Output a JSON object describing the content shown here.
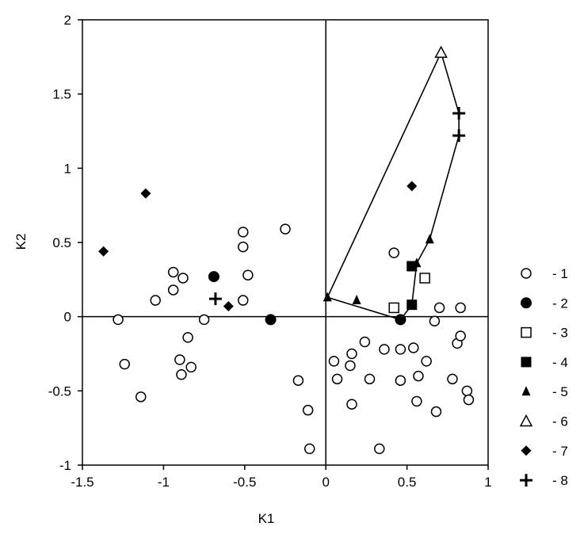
{
  "chart_data": {
    "type": "scatter",
    "xlabel": "K1",
    "ylabel": "K2",
    "xlim": [
      -1.5,
      1
    ],
    "ylim": [
      -1,
      2
    ],
    "xticks": [
      -1.5,
      -1,
      -0.5,
      0,
      0.5,
      1
    ],
    "yticks": [
      -1,
      -0.5,
      0,
      0.5,
      1,
      1.5,
      2
    ],
    "xtick_labels": [
      "-1.5",
      "-1",
      "-0.5",
      "0",
      "0.5",
      "1"
    ],
    "ytick_labels": [
      "-1",
      "-0.5",
      "0",
      "0.5",
      "1",
      "1.5",
      "2"
    ],
    "grid": false,
    "legend_position": "right",
    "reference_lines": {
      "x": 0,
      "y": 0
    },
    "series": [
      {
        "name": "- 1",
        "marker": "circle-open",
        "points": [
          [
            -1.28,
            -0.02
          ],
          [
            -1.24,
            -0.32
          ],
          [
            -1.14,
            -0.54
          ],
          [
            -1.05,
            0.11
          ],
          [
            -0.94,
            0.3
          ],
          [
            -0.94,
            0.18
          ],
          [
            -0.88,
            0.26
          ],
          [
            -0.9,
            -0.29
          ],
          [
            -0.89,
            -0.39
          ],
          [
            -0.85,
            -0.14
          ],
          [
            -0.83,
            -0.34
          ],
          [
            -0.75,
            -0.02
          ],
          [
            -0.51,
            0.57
          ],
          [
            -0.51,
            0.47
          ],
          [
            -0.51,
            0.11
          ],
          [
            -0.48,
            0.28
          ],
          [
            -0.25,
            0.59
          ],
          [
            -0.17,
            -0.43
          ],
          [
            -0.11,
            -0.63
          ],
          [
            -0.1,
            -0.89
          ],
          [
            0.05,
            -0.3
          ],
          [
            0.07,
            -0.42
          ],
          [
            0.15,
            -0.33
          ],
          [
            0.16,
            -0.25
          ],
          [
            0.16,
            -0.59
          ],
          [
            0.24,
            -0.17
          ],
          [
            0.27,
            -0.42
          ],
          [
            0.33,
            -0.89
          ],
          [
            0.36,
            -0.22
          ],
          [
            0.42,
            0.43
          ],
          [
            0.46,
            -0.22
          ],
          [
            0.46,
            -0.43
          ],
          [
            0.54,
            -0.21
          ],
          [
            0.56,
            -0.57
          ],
          [
            0.57,
            -0.4
          ],
          [
            0.62,
            -0.3
          ],
          [
            0.67,
            -0.03
          ],
          [
            0.68,
            -0.64
          ],
          [
            0.7,
            0.06
          ],
          [
            0.78,
            -0.42
          ],
          [
            0.81,
            -0.18
          ],
          [
            0.83,
            0.06
          ],
          [
            0.83,
            -0.13
          ],
          [
            0.87,
            -0.5
          ],
          [
            0.88,
            -0.56
          ]
        ]
      },
      {
        "name": "- 2",
        "marker": "circle-filled",
        "points": [
          [
            -0.69,
            0.27
          ],
          [
            -0.34,
            -0.02
          ],
          [
            0.46,
            -0.02
          ]
        ]
      },
      {
        "name": "- 3",
        "marker": "square-open",
        "points": [
          [
            0.42,
            0.06
          ],
          [
            0.61,
            0.26
          ]
        ]
      },
      {
        "name": "- 4",
        "marker": "square-filled",
        "points": [
          [
            0.53,
            0.34
          ],
          [
            0.53,
            0.08
          ]
        ]
      },
      {
        "name": "- 5",
        "marker": "triangle-filled",
        "points": [
          [
            0.01,
            0.13
          ],
          [
            0.19,
            0.11
          ],
          [
            0.56,
            0.36
          ],
          [
            0.64,
            0.52
          ]
        ]
      },
      {
        "name": "- 6",
        "marker": "triangle-open",
        "points": [
          [
            0.71,
            1.78
          ]
        ]
      },
      {
        "name": "- 7",
        "marker": "diamond-filled",
        "points": [
          [
            -1.37,
            0.44
          ],
          [
            -1.11,
            0.83
          ],
          [
            -0.6,
            0.07
          ],
          [
            0.53,
            0.88
          ]
        ]
      },
      {
        "name": "- 8",
        "marker": "plus",
        "points": [
          [
            -0.68,
            0.12
          ],
          [
            0.82,
            1.37
          ],
          [
            0.82,
            1.22
          ]
        ]
      }
    ],
    "hull_polygon": [
      [
        0.71,
        1.78
      ],
      [
        0.82,
        1.37
      ],
      [
        0.82,
        1.22
      ],
      [
        0.64,
        0.52
      ],
      [
        0.56,
        0.36
      ],
      [
        0.53,
        0.08
      ],
      [
        0.46,
        -0.02
      ],
      [
        0.01,
        0.13
      ]
    ]
  }
}
